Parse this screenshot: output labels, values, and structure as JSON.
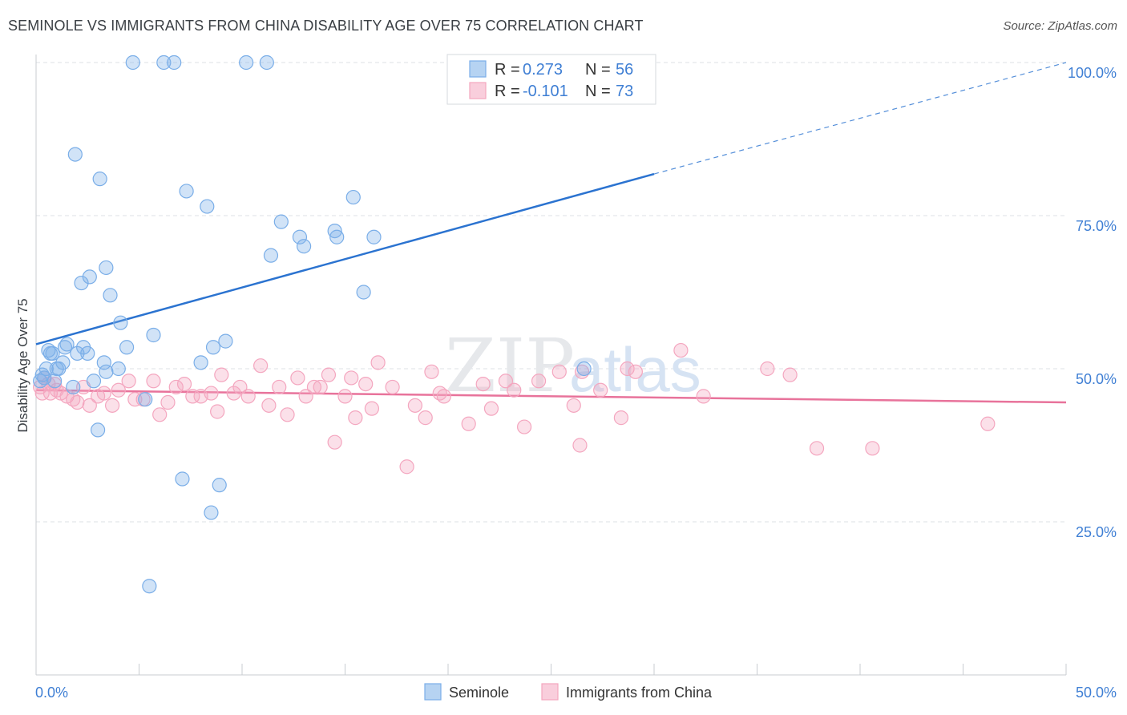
{
  "title": "SEMINOLE VS IMMIGRANTS FROM CHINA DISABILITY AGE OVER 75 CORRELATION CHART",
  "source": "Source: ZipAtlas.com",
  "watermark": "ZIPatlas",
  "chart_data": {
    "type": "scatter",
    "ylabel": "Disability Age Over 75",
    "xlim": [
      0,
      50
    ],
    "ylim": [
      0,
      100
    ],
    "x_tick_labels": [
      "0.0%",
      "50.0%"
    ],
    "y_tick_labels": [
      {
        "value": 100,
        "label": "100.0%"
      },
      {
        "value": 75,
        "label": "75.0%"
      },
      {
        "value": 50,
        "label": "50.0%"
      },
      {
        "value": 25,
        "label": "25.0%"
      }
    ],
    "grid": true,
    "legend_position": "top-center",
    "stats": [
      {
        "r_label": "R =",
        "r_value": "0.273",
        "n_label": "N =",
        "n_value": "56"
      },
      {
        "r_label": "R =",
        "r_value": "-0.101",
        "n_label": "N =",
        "n_value": "73"
      }
    ],
    "series": [
      {
        "name": "Seminole",
        "color": "#7aaee8",
        "line_color": "#2b73d0",
        "trend": {
          "x0": 0.0,
          "y0": 54.0,
          "x1": 30.0,
          "y1": 81.8,
          "dash_x1": 50.0,
          "dash_y1": 100.0
        },
        "points": [
          [
            0.3,
            49
          ],
          [
            0.4,
            48.5
          ],
          [
            0.5,
            50
          ],
          [
            0.6,
            53
          ],
          [
            0.7,
            52.5
          ],
          [
            0.8,
            52.5
          ],
          [
            0.9,
            48
          ],
          [
            1.0,
            50
          ],
          [
            1.1,
            50
          ],
          [
            1.3,
            51
          ],
          [
            1.4,
            53.5
          ],
          [
            1.5,
            54
          ],
          [
            1.8,
            47
          ],
          [
            2.0,
            52.5
          ],
          [
            1.9,
            85
          ],
          [
            2.2,
            64
          ],
          [
            2.3,
            53.5
          ],
          [
            2.5,
            52.5
          ],
          [
            2.6,
            65
          ],
          [
            2.8,
            48
          ],
          [
            3.0,
            40
          ],
          [
            3.1,
            81
          ],
          [
            3.3,
            51
          ],
          [
            3.4,
            49.5
          ],
          [
            3.4,
            66.5
          ],
          [
            3.6,
            62
          ],
          [
            4.0,
            50
          ],
          [
            4.1,
            57.5
          ],
          [
            4.4,
            53.5
          ],
          [
            4.7,
            100
          ],
          [
            5.3,
            45
          ],
          [
            5.5,
            14.5
          ],
          [
            5.7,
            55.5
          ],
          [
            6.2,
            100
          ],
          [
            6.7,
            100
          ],
          [
            7.1,
            32
          ],
          [
            7.3,
            79
          ],
          [
            8.0,
            51
          ],
          [
            8.3,
            76.5
          ],
          [
            8.5,
            26.5
          ],
          [
            8.6,
            53.5
          ],
          [
            8.9,
            31
          ],
          [
            9.2,
            54.5
          ],
          [
            10.2,
            100
          ],
          [
            11.2,
            100
          ],
          [
            11.4,
            68.5
          ],
          [
            11.9,
            74
          ],
          [
            12.8,
            71.5
          ],
          [
            13.0,
            70
          ],
          [
            14.5,
            72.5
          ],
          [
            14.6,
            71.5
          ],
          [
            15.4,
            78
          ],
          [
            15.9,
            62.5
          ],
          [
            16.4,
            71.5
          ],
          [
            26.6,
            50
          ],
          [
            0.2,
            48
          ]
        ]
      },
      {
        "name": "Immigrants from China",
        "color": "#f4a6bf",
        "line_color": "#e8739b",
        "trend": {
          "x0": 0.0,
          "y0": 46.5,
          "x1": 50.0,
          "y1": 44.5
        },
        "points": [
          [
            0.2,
            47
          ],
          [
            0.4,
            48.5
          ],
          [
            0.6,
            47.5
          ],
          [
            0.7,
            46
          ],
          [
            0.9,
            47.5
          ],
          [
            1.0,
            46.5
          ],
          [
            1.2,
            46
          ],
          [
            1.5,
            45.5
          ],
          [
            1.8,
            45
          ],
          [
            2.0,
            44.5
          ],
          [
            2.3,
            47
          ],
          [
            2.6,
            44
          ],
          [
            3.0,
            45.5
          ],
          [
            3.3,
            46
          ],
          [
            3.7,
            44
          ],
          [
            4.0,
            46.5
          ],
          [
            4.5,
            48
          ],
          [
            4.8,
            45
          ],
          [
            5.2,
            45
          ],
          [
            5.7,
            48
          ],
          [
            6.0,
            42.5
          ],
          [
            6.4,
            44.5
          ],
          [
            6.8,
            47
          ],
          [
            7.2,
            47.5
          ],
          [
            7.6,
            45.5
          ],
          [
            8.0,
            45.5
          ],
          [
            8.5,
            46
          ],
          [
            8.8,
            43
          ],
          [
            9.0,
            49
          ],
          [
            9.6,
            46
          ],
          [
            9.9,
            47
          ],
          [
            10.3,
            45.5
          ],
          [
            10.9,
            50.5
          ],
          [
            11.3,
            44
          ],
          [
            11.8,
            47
          ],
          [
            12.2,
            42.5
          ],
          [
            12.7,
            48.5
          ],
          [
            13.1,
            45.5
          ],
          [
            13.5,
            47
          ],
          [
            13.8,
            47
          ],
          [
            14.2,
            49
          ],
          [
            14.5,
            38
          ],
          [
            15.0,
            45.5
          ],
          [
            15.3,
            48.5
          ],
          [
            15.5,
            42
          ],
          [
            16.0,
            47.5
          ],
          [
            16.3,
            43.5
          ],
          [
            16.6,
            51
          ],
          [
            17.3,
            47
          ],
          [
            18.0,
            34
          ],
          [
            18.4,
            44
          ],
          [
            18.9,
            42
          ],
          [
            19.2,
            49.5
          ],
          [
            19.6,
            46
          ],
          [
            19.8,
            45.5
          ],
          [
            21.0,
            41
          ],
          [
            21.7,
            47.5
          ],
          [
            22.1,
            43.5
          ],
          [
            22.8,
            48
          ],
          [
            23.2,
            46.5
          ],
          [
            23.7,
            40.5
          ],
          [
            24.4,
            48
          ],
          [
            25.4,
            49.5
          ],
          [
            26.1,
            44
          ],
          [
            26.4,
            37.5
          ],
          [
            26.5,
            49.5
          ],
          [
            27.4,
            46.5
          ],
          [
            28.4,
            42
          ],
          [
            28.7,
            50
          ],
          [
            31.3,
            53
          ],
          [
            32.4,
            45.5
          ],
          [
            35.5,
            50
          ],
          [
            37.9,
            37
          ]
        ],
        "extra_points": [
          [
            36.6,
            49
          ],
          [
            40.6,
            37
          ],
          [
            46.2,
            41
          ],
          [
            29.1,
            49.5
          ],
          [
            0.3,
            46
          ]
        ]
      }
    ]
  },
  "bottom_legend": [
    {
      "label": "Seminole",
      "color": "#7aaee8"
    },
    {
      "label": "Immigrants from China",
      "color": "#f4a6bf"
    }
  ]
}
